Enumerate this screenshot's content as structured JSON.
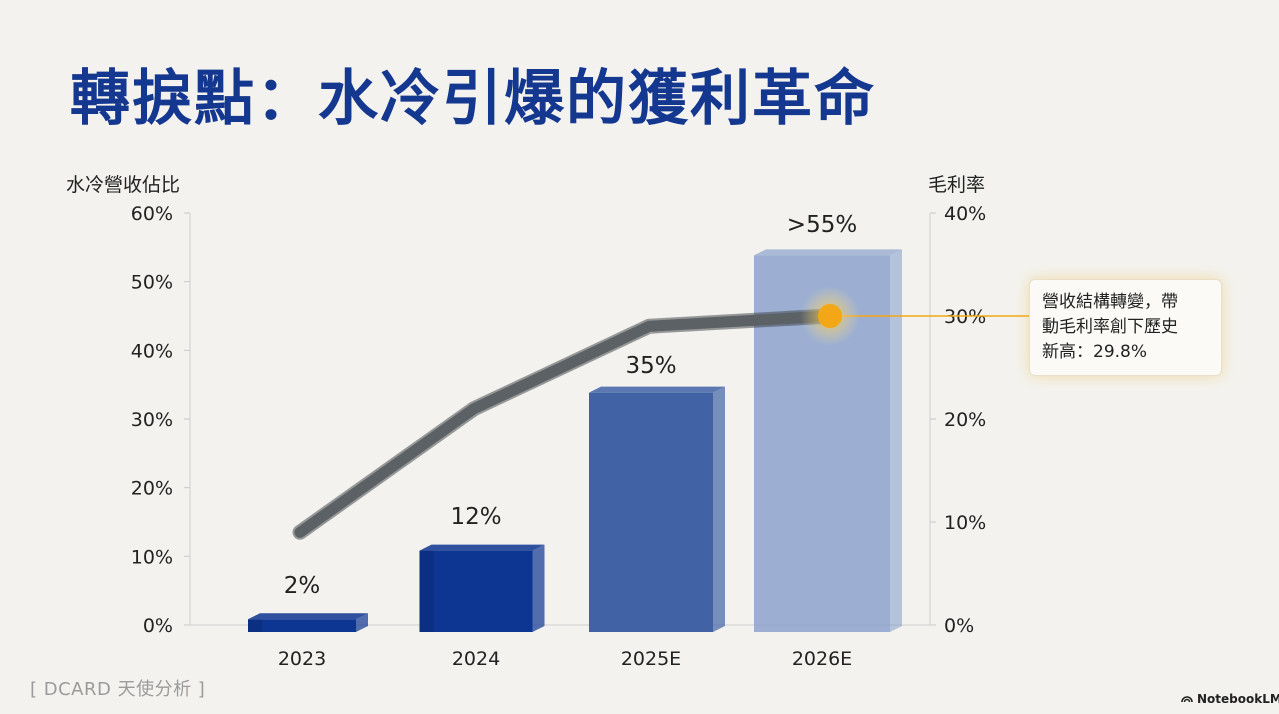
{
  "title": "轉捩點：水冷引爆的獲利革命",
  "source": "[ DCARD 天使分析 ]",
  "brand": "NotebookLM",
  "callout": {
    "lines": [
      "營收結構轉變，帶",
      "動毛利率創下歷史",
      "新高：29.8%"
    ]
  },
  "colors": {
    "title": "#14378f",
    "bar_dark": "#0d3592",
    "bar_mid": "#4163a6",
    "bar_light": "#7f99c8",
    "line": "#5c6166",
    "highlight": "#f3a716"
  },
  "chart_data": {
    "type": "bar",
    "categories": [
      "2023",
      "2024",
      "2025E",
      "2026E"
    ],
    "series": [
      {
        "values": [
          2,
          12,
          35,
          55
        ],
        "axis": "left"
      },
      {
        "values": [
          9,
          21,
          29,
          30
        ],
        "axis": "right"
      }
    ],
    "bar_labels": [
      "2%",
      "12%",
      "35%",
      ">55%"
    ],
    "ylabel": "水冷營收佔比",
    "y2label": "毛利率",
    "ylim": [
      0,
      60
    ],
    "y2lim": [
      0,
      40
    ],
    "yticks": [
      "0%",
      "10%",
      "20%",
      "30%",
      "40%",
      "50%",
      "60%"
    ],
    "y2ticks": [
      "0%",
      "10%",
      "20%",
      "30%",
      "40%"
    ],
    "grid": false
  }
}
